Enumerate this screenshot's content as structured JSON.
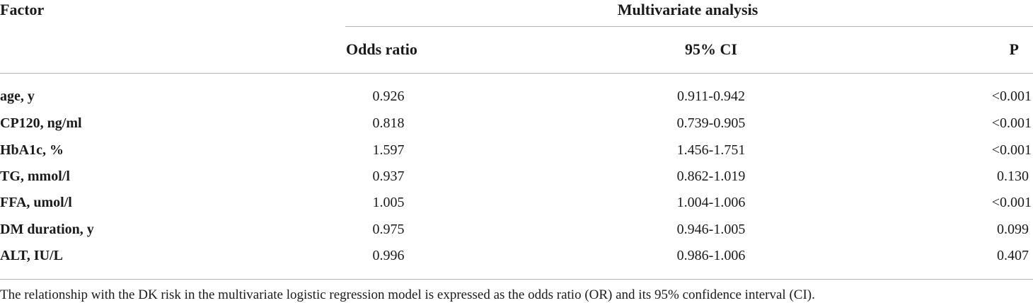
{
  "table": {
    "header": {
      "factor": "Factor",
      "group": "Multivariate analysis",
      "odds_ratio": "Odds ratio",
      "ci": "95% CI",
      "p": "P"
    },
    "rows": [
      {
        "factor": "age, y",
        "or": "0.926",
        "ci": "0.911-0.942",
        "p": "<0.001"
      },
      {
        "factor": "CP120, ng/ml",
        "or": "0.818",
        "ci": "0.739-0.905",
        "p": "<0.001"
      },
      {
        "factor": "HbA1c, %",
        "or": "1.597",
        "ci": "1.456-1.751",
        "p": "<0.001"
      },
      {
        "factor": "TG, mmol/l",
        "or": "0.937",
        "ci": "0.862-1.019",
        "p": "0.130"
      },
      {
        "factor": "FFA, umol/l",
        "or": "1.005",
        "ci": "1.004-1.006",
        "p": "<0.001"
      },
      {
        "factor": "DM duration, y",
        "or": "0.975",
        "ci": "0.946-1.005",
        "p": "0.099"
      },
      {
        "factor": "ALT, IU/L",
        "or": "0.996",
        "ci": "0.986-1.006",
        "p": "0.407"
      }
    ],
    "footnote": "The relationship with the DK risk in the multivariate logistic regression model is expressed as the odds ratio (OR) and its 95% confidence interval (CI)."
  }
}
